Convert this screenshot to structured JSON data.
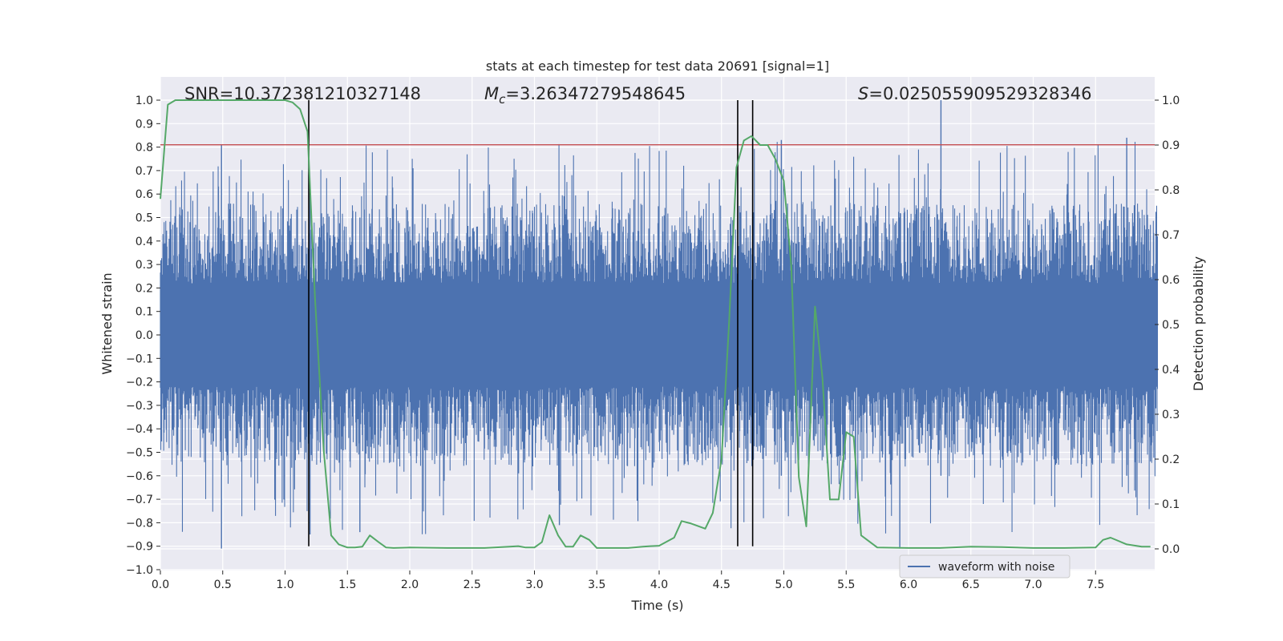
{
  "chart_data": {
    "type": "line",
    "title": "stats at each timestep for test data 20691 [signal=1]",
    "xlabel": "Time (s)",
    "ylabel": "Whitened strain",
    "y2label": "Detection probability",
    "xlim": [
      0.0,
      8.0
    ],
    "ylim": [
      -1.0,
      1.1
    ],
    "y2lim": [
      -0.05,
      1.05
    ],
    "x_ticks": [
      "0.0",
      "0.5",
      "1.0",
      "1.5",
      "2.0",
      "2.5",
      "3.0",
      "3.5",
      "4.0",
      "4.5",
      "5.0",
      "5.5",
      "6.0",
      "6.5",
      "7.0",
      "7.5"
    ],
    "y_ticks": [
      "−1.0",
      "−0.9",
      "−0.8",
      "−0.7",
      "−0.6",
      "−0.5",
      "−0.4",
      "−0.3",
      "−0.2",
      "−0.1",
      "0.0",
      "0.1",
      "0.2",
      "0.3",
      "0.4",
      "0.5",
      "0.6",
      "0.7",
      "0.8",
      "0.9",
      "1.0"
    ],
    "y2_ticks": [
      "0.0",
      "0.1",
      "0.2",
      "0.3",
      "0.4",
      "0.5",
      "0.6",
      "0.7",
      "0.8",
      "0.9",
      "1.0"
    ],
    "grid": true,
    "legend": {
      "position": "lower-right",
      "entries": [
        "waveform with noise"
      ]
    },
    "annotations": {
      "snr": "SNR=10.372381210327148",
      "mc_prefix": "M",
      "mc_sub": "c",
      "mc_value": "=3.26347279548645",
      "s_prefix": "S",
      "s_value": "=0.025055909529328346"
    },
    "threshold_y": 0.81,
    "vertical_lines_x": [
      1.19,
      4.63,
      4.75
    ],
    "waveform": {
      "name": "waveform with noise",
      "color": "#4c72b0",
      "time_range": [
        0.0,
        8.0
      ],
      "envelope": "approximately uniform noise between -0.35 and 0.38 with spikes up to 1.0 and down to -0.91"
    },
    "detection_probability": {
      "color": "#55a868",
      "x": [
        0.0,
        0.06,
        0.12,
        0.2,
        0.4,
        0.6,
        0.8,
        1.0,
        1.06,
        1.12,
        1.18,
        1.24,
        1.31,
        1.37,
        1.43,
        1.5,
        1.56,
        1.62,
        1.68,
        1.75,
        1.81,
        1.87,
        2.0,
        2.3,
        2.6,
        2.8,
        2.87,
        2.93,
        3.0,
        3.06,
        3.12,
        3.19,
        3.25,
        3.31,
        3.37,
        3.44,
        3.5,
        3.56,
        3.75,
        3.87,
        3.93,
        4.0,
        4.12,
        4.18,
        4.25,
        4.37,
        4.43,
        4.5,
        4.56,
        4.62,
        4.68,
        4.74,
        4.81,
        4.87,
        4.93,
        5.0,
        5.06,
        5.12,
        5.18,
        5.25,
        5.31,
        5.37,
        5.44,
        5.5,
        5.56,
        5.62,
        5.75,
        6.0,
        6.25,
        6.5,
        6.75,
        7.0,
        7.25,
        7.5,
        7.56,
        7.62,
        7.75,
        7.87,
        7.94
      ],
      "values": [
        0.78,
        0.99,
        1.0,
        1.0,
        1.0,
        1.0,
        1.0,
        1.0,
        0.995,
        0.98,
        0.93,
        0.56,
        0.22,
        0.03,
        0.01,
        0.003,
        0.003,
        0.005,
        0.03,
        0.015,
        0.003,
        0.002,
        0.003,
        0.002,
        0.002,
        0.005,
        0.006,
        0.003,
        0.003,
        0.015,
        0.075,
        0.03,
        0.005,
        0.005,
        0.03,
        0.02,
        0.002,
        0.002,
        0.002,
        0.005,
        0.006,
        0.007,
        0.025,
        0.062,
        0.057,
        0.045,
        0.08,
        0.2,
        0.5,
        0.85,
        0.91,
        0.92,
        0.9,
        0.9,
        0.87,
        0.82,
        0.63,
        0.16,
        0.05,
        0.54,
        0.38,
        0.11,
        0.11,
        0.26,
        0.25,
        0.03,
        0.003,
        0.002,
        0.002,
        0.005,
        0.004,
        0.002,
        0.002,
        0.003,
        0.02,
        0.025,
        0.01,
        0.005,
        0.005
      ]
    }
  }
}
